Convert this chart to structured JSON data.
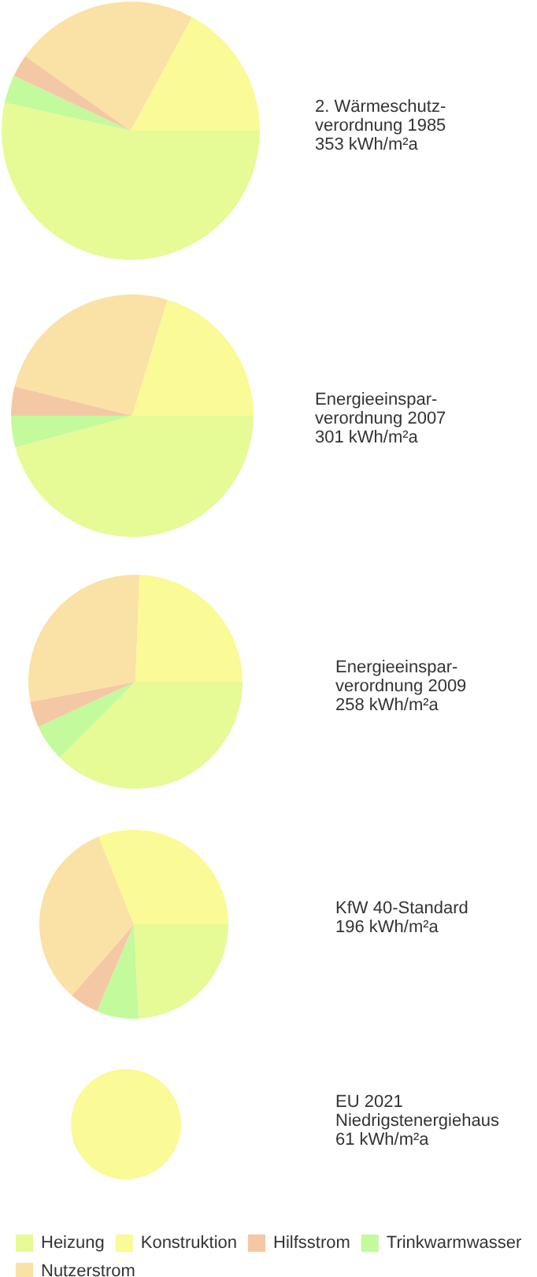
{
  "chart_data": {
    "type": "pie",
    "categories": [
      "Heizung",
      "Trinkwarmwasser",
      "Hilfsstrom",
      "Nutzerstrom",
      "Konstruktion"
    ],
    "colors": [
      "#e6fa96",
      "#c3fa9b",
      "#f5c8a5",
      "#fae1a5",
      "#fafa96"
    ],
    "legend": "bottom",
    "series": [
      {
        "name": "2. Wärmeschutz-\nverordnung 1985\n353 kWh/m²a",
        "values": [
          53.5,
          3.5,
          2.8,
          23.1,
          17.1
        ]
      },
      {
        "name": "Energieeinspar-\nverordnung 2007\n301 kWh/m²a",
        "values": [
          45.8,
          4.2,
          3.9,
          25.8,
          20.3
        ]
      },
      {
        "name": "Energieeinspar-\nverordnung 2009\n258 kWh/m²a",
        "values": [
          37.5,
          5.6,
          3.9,
          28.6,
          24.4
        ]
      },
      {
        "name": "KfW 40-Standard\n196 kWh/m²a",
        "values": [
          24.2,
          7.2,
          5.0,
          32.5,
          31.1
        ]
      },
      {
        "name": "EU 2021\nNiedrigstenergiehaus\n61 kWh/m²a",
        "values": [
          0,
          0,
          0,
          0,
          100
        ]
      }
    ]
  }
}
